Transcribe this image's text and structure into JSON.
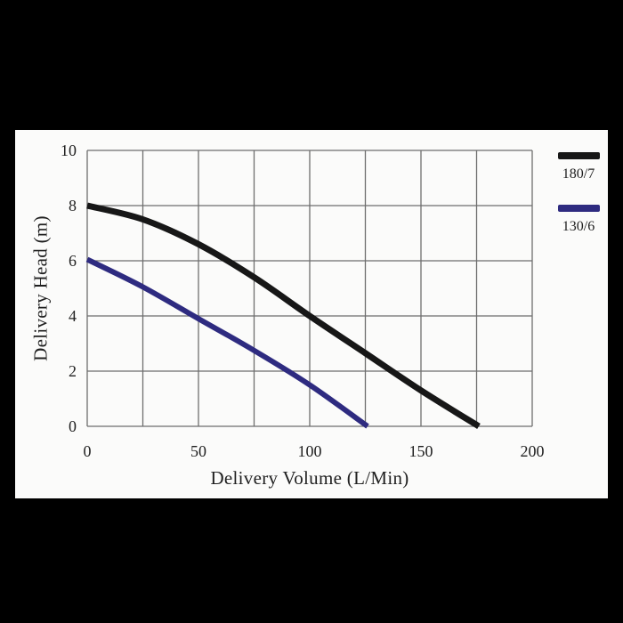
{
  "scan": {
    "frame_color": "#000000",
    "paper_color": "#fbfbfa",
    "grid_color": "#6e6e6e",
    "text_color": "#1f1f1f"
  },
  "chart_data": {
    "type": "line",
    "title": "",
    "xlabel": "Delivery Volume (L/Min)",
    "ylabel": "Delivery Head (m)",
    "xlim": [
      0,
      200
    ],
    "ylim": [
      0,
      10
    ],
    "x_grid_step": 25,
    "y_grid_step": 2,
    "grid": true,
    "legend_position": "right-outside",
    "xticks": [
      {
        "value": 0,
        "label": "0"
      },
      {
        "value": 50,
        "label": "50"
      },
      {
        "value": 100,
        "label": "100"
      },
      {
        "value": 150,
        "label": "150"
      },
      {
        "value": 200,
        "label": "200"
      }
    ],
    "yticks": [
      {
        "value": 10,
        "label": "10"
      },
      {
        "value": 8,
        "label": "8"
      },
      {
        "value": 6,
        "label": "6"
      },
      {
        "value": 4,
        "label": "4"
      },
      {
        "value": 2,
        "label": "2"
      },
      {
        "value": 0,
        "label": "0"
      }
    ],
    "series": [
      {
        "name": "180/7",
        "color": "#171717",
        "stroke_width": 7,
        "points": [
          [
            0,
            8.0
          ],
          [
            25,
            7.5
          ],
          [
            50,
            6.6
          ],
          [
            75,
            5.4
          ],
          [
            100,
            4.0
          ],
          [
            125,
            2.65
          ],
          [
            150,
            1.3
          ],
          [
            176,
            0
          ]
        ]
      },
      {
        "name": "130/6",
        "color": "#2e2b80",
        "stroke_width": 6,
        "points": [
          [
            0,
            6.05
          ],
          [
            25,
            5.05
          ],
          [
            50,
            3.9
          ],
          [
            75,
            2.75
          ],
          [
            100,
            1.5
          ],
          [
            126,
            0
          ]
        ]
      }
    ]
  }
}
